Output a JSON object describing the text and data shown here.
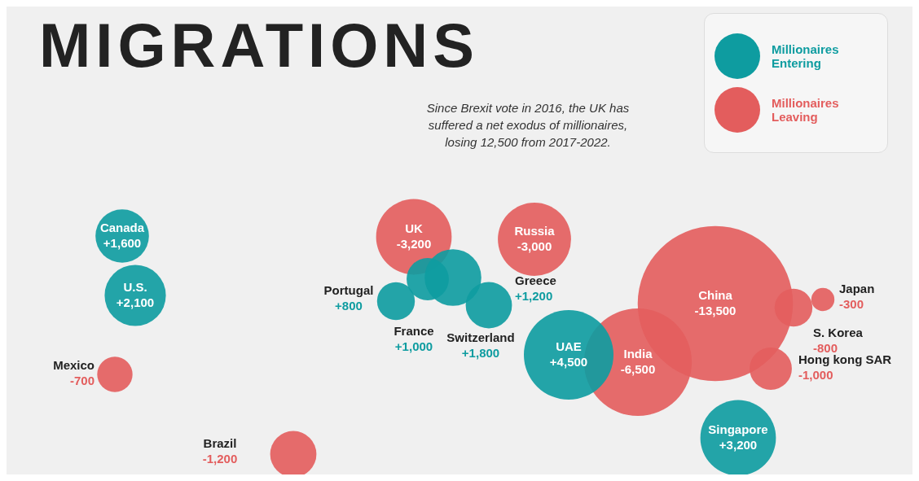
{
  "chart_data": {
    "type": "other",
    "title": "MIGRATIONS",
    "categories": [
      "Canada",
      "U.S.",
      "Mexico",
      "Brazil",
      "UK",
      "Portugal",
      "France",
      "Switzerland",
      "Greece",
      "Russia",
      "UAE",
      "India",
      "China",
      "Japan",
      "S. Korea",
      "Hong kong SAR",
      "Singapore"
    ],
    "series": [
      {
        "name": "Millionaires Entering",
        "color": "#0e9ca0",
        "values": [
          1600,
          2100,
          null,
          null,
          null,
          800,
          1000,
          1800,
          1200,
          null,
          4500,
          null,
          null,
          null,
          null,
          null,
          3200
        ],
        "value_labels": [
          "+1,600",
          "+2,100",
          null,
          null,
          null,
          "+800",
          "+1,000",
          "+1,800",
          "+1,200",
          null,
          "+4,500",
          null,
          null,
          null,
          null,
          null,
          "+3,200"
        ]
      },
      {
        "name": "Millionaires Leaving",
        "color": "#e35d5d",
        "values": [
          null,
          null,
          -700,
          -1200,
          -3200,
          null,
          null,
          null,
          null,
          -3000,
          null,
          -6500,
          -13500,
          -300,
          -800,
          -1000,
          null
        ],
        "value_labels": [
          null,
          null,
          "-700",
          "-1,200",
          "-3,200",
          null,
          null,
          null,
          null,
          "-3,000",
          null,
          "-6,500",
          "-13,500",
          "-300",
          "-800",
          "-1,000",
          null
        ]
      }
    ],
    "annotations": [
      "Since Brexit vote in 2016, the UK has suffered a net exodus of millionaires, losing 12,500 from 2017-2022."
    ],
    "legend": "top right"
  }
}
